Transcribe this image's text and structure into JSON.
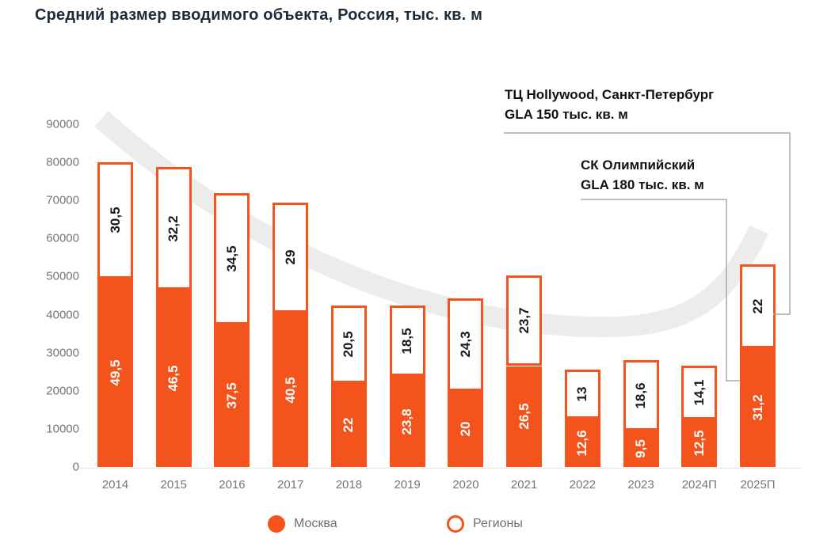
{
  "title": "Средний размер вводимого объекта, Россия, тыс. кв. м",
  "colors": {
    "accent_orange": "#F4531C",
    "title": "#1C2B3A",
    "axis_text": "#757575",
    "bar_label_dark": "#1A1A1A",
    "bar_label_light": "#FFFFFF",
    "swoosh_gray": "#ECECEC",
    "connector_gray": "#A8A8A8",
    "legend_text": "#6F6F6F"
  },
  "chart_data": {
    "type": "bar",
    "stacked": true,
    "title": "Средний размер вводимого объекта, Россия, тыс. кв. м",
    "categories": [
      "2014",
      "2015",
      "2016",
      "2017",
      "2018",
      "2019",
      "2020",
      "2021",
      "2022",
      "2023",
      "2024П",
      "2025П"
    ],
    "series": [
      {
        "name": "Москва",
        "style": "filled",
        "values": [
          49.5,
          46.5,
          37.5,
          40.5,
          22,
          23.8,
          20,
          26.5,
          12.6,
          9.5,
          12.5,
          31.2
        ]
      },
      {
        "name": "Регионы",
        "style": "outline",
        "values": [
          30.5,
          32.2,
          34.5,
          29,
          20.5,
          18.5,
          24.3,
          23.7,
          13,
          18.6,
          14.1,
          22
        ]
      }
    ],
    "value_units": "тыс. кв. м",
    "y_axis_ticks": [
      0,
      10000,
      20000,
      30000,
      40000,
      50000,
      60000,
      70000,
      80000,
      90000
    ],
    "ylim": [
      0,
      90000
    ],
    "grid": false,
    "legend_position": "bottom",
    "decimal_separator": ",",
    "background_trend": "decline-then-rise-swoosh"
  },
  "annotations": [
    {
      "line1": "ТЦ Hollywood, Санкт-Петербург",
      "line2": "GLA 150 тыс. кв. м",
      "target": "2025П Регионы"
    },
    {
      "line1": "СК Олимпийский",
      "line2": "GLA 180 тыс. кв. м",
      "target": "2025П Москва"
    }
  ],
  "legend": {
    "items": [
      {
        "label": "Москва",
        "swatch": "filled-circle"
      },
      {
        "label": "Регионы",
        "swatch": "outline-circle"
      }
    ]
  }
}
